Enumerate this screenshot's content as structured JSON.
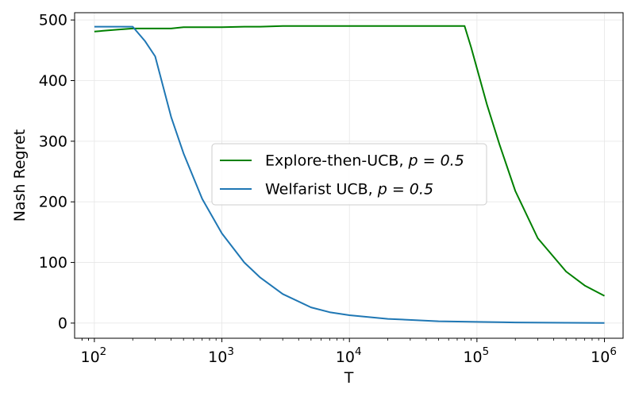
{
  "chart_data": {
    "type": "line",
    "xlabel": "T",
    "ylabel": "Nash Regret",
    "x_scale": "log",
    "xlim": [
      70,
      1400000
    ],
    "ylim": [
      -25,
      512
    ],
    "x_ticks": [
      {
        "value": 100,
        "base": "10",
        "exp": "2"
      },
      {
        "value": 1000,
        "base": "10",
        "exp": "3"
      },
      {
        "value": 10000,
        "base": "10",
        "exp": "4"
      },
      {
        "value": 100000,
        "base": "10",
        "exp": "5"
      },
      {
        "value": 1000000,
        "base": "10",
        "exp": "6"
      }
    ],
    "y_ticks": [
      0,
      100,
      200,
      300,
      400,
      500
    ],
    "grid": true,
    "legend_placement": "center",
    "series": [
      {
        "name": "Explore-then-UCB, ",
        "name_math": "p = 0.5",
        "color": "#008000",
        "x": [
          100,
          150,
          200,
          300,
          400,
          500,
          700,
          1000,
          1500,
          2000,
          3000,
          5000,
          7000,
          10000,
          20000,
          50000,
          80000,
          90000,
          100000,
          120000,
          150000,
          200000,
          300000,
          500000,
          700000,
          1000000
        ],
        "y": [
          481,
          484,
          486,
          486,
          486,
          488,
          488,
          488,
          489,
          489,
          490,
          490,
          490,
          490,
          490,
          490,
          490,
          455,
          420,
          360,
          295,
          218,
          140,
          85,
          62,
          45
        ]
      },
      {
        "name": "Welfarist UCB, ",
        "name_math": "p = 0.5",
        "color": "#1f77b4",
        "x": [
          100,
          150,
          200,
          250,
          300,
          400,
          500,
          700,
          1000,
          1500,
          2000,
          3000,
          5000,
          7000,
          10000,
          20000,
          50000,
          100000,
          200000,
          500000,
          1000000
        ],
        "y": [
          489,
          489,
          489,
          465,
          440,
          340,
          280,
          205,
          148,
          100,
          75,
          48,
          26,
          18,
          13,
          7,
          3,
          2,
          1,
          0.5,
          0.3
        ]
      }
    ]
  }
}
